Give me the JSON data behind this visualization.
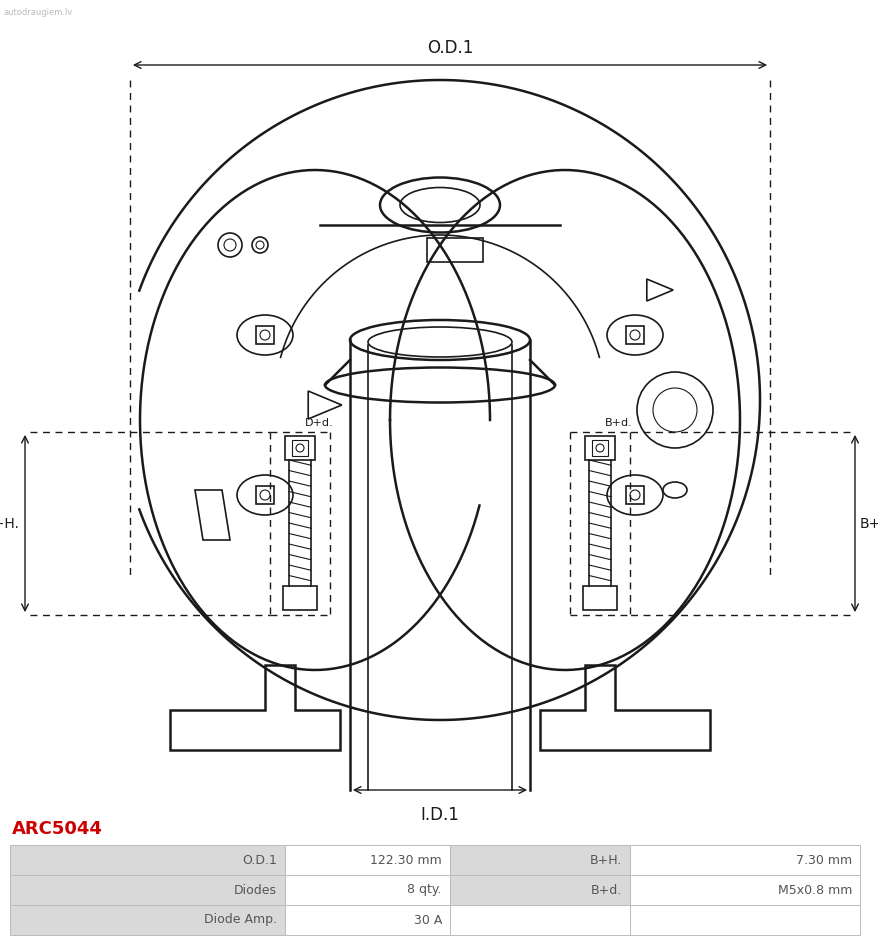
{
  "title": "ARC5044",
  "title_color": "#cc0000",
  "bg_color": "#ffffff",
  "table_data": [
    [
      "O.D.1",
      "122.30 mm",
      "B+H.",
      "7.30 mm"
    ],
    [
      "Diodes",
      "8 qty.",
      "B+d.",
      "M5x0.8 mm"
    ],
    [
      "Diode Amp.",
      "30 A",
      "",
      ""
    ]
  ],
  "label_bg": "#d9d9d9",
  "value_bg": "#ffffff",
  "table_border": "#bbbbbb",
  "font_size_table": 9,
  "font_size_title": 13,
  "watermark": "autodraugiem.lv",
  "od1_label": "O.D.1",
  "id1_label": "I.D.1",
  "dh_label": "D+H.",
  "bh_label": "B+H.",
  "dd_label": "D+d.",
  "bd_label": "B+d."
}
